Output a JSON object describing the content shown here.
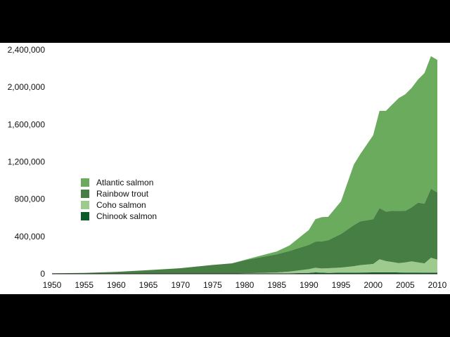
{
  "chart_data": {
    "type": "area",
    "stacked": true,
    "title": "",
    "xlabel": "",
    "ylabel": "",
    "xlim": [
      1950,
      2010
    ],
    "ylim": [
      0,
      2400000
    ],
    "x_ticks": [
      1950,
      1955,
      1960,
      1965,
      1970,
      1975,
      1980,
      1985,
      1990,
      1995,
      2000,
      2005,
      2010
    ],
    "y_ticks": [
      0,
      400000,
      800000,
      1200000,
      1600000,
      2000000,
      2400000
    ],
    "y_tick_labels": [
      "0",
      "400,000",
      "800,000",
      "1,200,000",
      "1,600,000",
      "2,000,000",
      "2,400,000"
    ],
    "grid": false,
    "legend_position": "left-middle",
    "x": [
      1950,
      1955,
      1960,
      1965,
      1970,
      1975,
      1978,
      1980,
      1985,
      1987,
      1990,
      1991,
      1992,
      1993,
      1995,
      1997,
      1998,
      2000,
      2001,
      2002,
      2003,
      2004,
      2005,
      2006,
      2007,
      2008,
      2009,
      2010
    ],
    "series": [
      {
        "name": "Chinook salmon",
        "color": "#0d5a2a",
        "values": [
          0,
          0,
          0,
          0,
          0,
          0,
          0,
          1000,
          3000,
          5000,
          10000,
          15000,
          12000,
          10000,
          12000,
          12000,
          13000,
          15000,
          16000,
          16000,
          16000,
          14000,
          13000,
          13000,
          13000,
          12000,
          12000,
          12000
        ]
      },
      {
        "name": "Coho salmon",
        "color": "#9ccb8d",
        "values": [
          0,
          0,
          0,
          0,
          0,
          0,
          2000,
          4000,
          12000,
          20000,
          40000,
          50000,
          45000,
          50000,
          55000,
          70000,
          80000,
          90000,
          140000,
          120000,
          110000,
          100000,
          110000,
          120000,
          110000,
          100000,
          160000,
          140000
        ]
      },
      {
        "name": "Rainbow trout",
        "color": "#467e44",
        "values": [
          5000,
          10000,
          20000,
          40000,
          60000,
          95000,
          110000,
          140000,
          195000,
          220000,
          260000,
          280000,
          290000,
          300000,
          360000,
          440000,
          470000,
          480000,
          550000,
          530000,
          550000,
          560000,
          550000,
          580000,
          640000,
          640000,
          740000,
          720000
        ]
      },
      {
        "name": "Atlantic salmon",
        "color": "#6aab5e",
        "values": [
          0,
          0,
          0,
          0,
          0,
          0,
          0,
          5000,
          30000,
          60000,
          160000,
          240000,
          260000,
          250000,
          350000,
          650000,
          720000,
          900000,
          1040000,
          1080000,
          1140000,
          1210000,
          1250000,
          1280000,
          1320000,
          1400000,
          1420000,
          1420000
        ]
      }
    ]
  }
}
